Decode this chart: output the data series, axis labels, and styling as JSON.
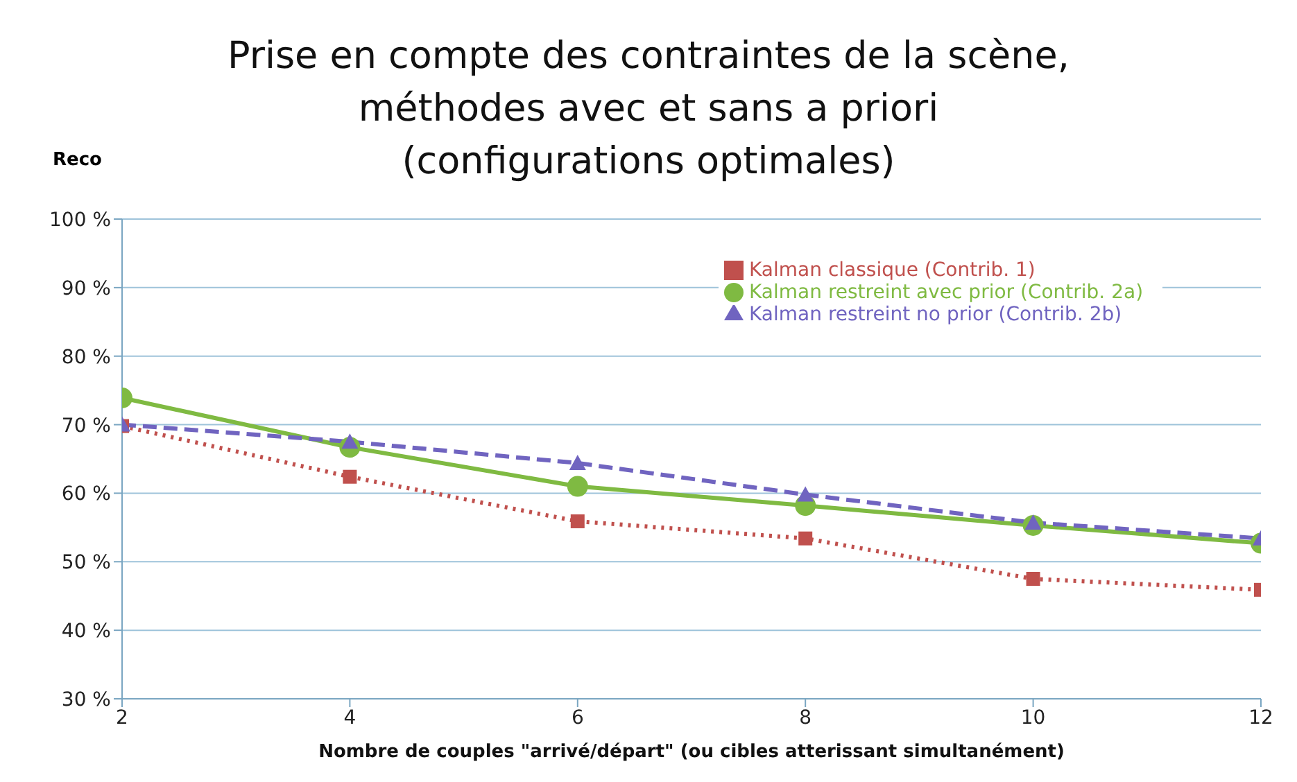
{
  "chart_data": {
    "type": "line",
    "title": "Prise en compte des contraintes de la scène,\nméthodes avec et sans a priori\n(configurations optimales)",
    "xlabel": "Nombre de couples \"arrivé/départ\"  (ou cibles atterissant simultanément)",
    "ylabel": "Reco",
    "x": [
      2,
      4,
      6,
      8,
      10,
      12
    ],
    "series": [
      {
        "name": "Kalman classique  (Contrib. 1)",
        "color": "#c0504d",
        "marker": "square",
        "line_style": "dotted",
        "values": [
          69.8,
          62.4,
          55.9,
          53.4,
          47.5,
          45.9
        ]
      },
      {
        "name": "Kalman restreint avec prior  (Contrib. 2a)",
        "color": "#7fba42",
        "marker": "circle",
        "line_style": "solid",
        "values": [
          73.9,
          66.7,
          61.0,
          58.2,
          55.3,
          52.7
        ]
      },
      {
        "name": "Kalman restreint no prior  (Contrib. 2b)",
        "color": "#7064c0",
        "marker": "triangle",
        "line_style": "dashed",
        "values": [
          70.0,
          67.5,
          64.4,
          59.8,
          55.7,
          53.4
        ]
      }
    ],
    "xlim": [
      2,
      12
    ],
    "xticks": [
      2,
      4,
      6,
      8,
      10,
      12
    ],
    "ylim": [
      30,
      100
    ],
    "yticks": [
      {
        "value": 30,
        "label": "30 %"
      },
      {
        "value": 40,
        "label": "40 %"
      },
      {
        "value": 50,
        "label": "50 %"
      },
      {
        "value": 60,
        "label": "60 %"
      },
      {
        "value": 70,
        "label": "70 %"
      },
      {
        "value": 80,
        "label": "80 %"
      },
      {
        "value": 90,
        "label": "90 %"
      },
      {
        "value": 100,
        "label": "100 %"
      }
    ],
    "grid": "y",
    "legend": "top right"
  }
}
